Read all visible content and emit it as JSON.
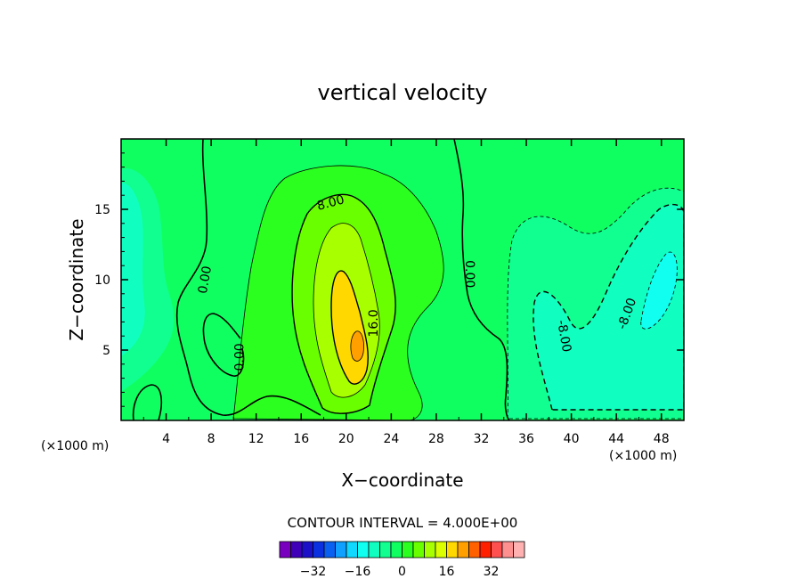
{
  "chart_data": {
    "type": "contour",
    "title": "vertical velocity",
    "xlabel": "X−coordinate",
    "ylabel": "Z−coordinate",
    "x_unit": "(×1000 m)",
    "y_unit": "(×1000 m)",
    "xlim": [
      0,
      50
    ],
    "ylim": [
      0,
      20
    ],
    "x_ticks": [
      "4",
      "8",
      "12",
      "16",
      "20",
      "24",
      "28",
      "32",
      "36",
      "40",
      "44",
      "48"
    ],
    "x_tick_values": [
      4,
      8,
      12,
      16,
      20,
      24,
      28,
      32,
      36,
      40,
      44,
      48
    ],
    "y_ticks": [
      "5",
      "10",
      "15"
    ],
    "y_tick_values": [
      5,
      10,
      15
    ],
    "contour_interval_text": "CONTOUR INTERVAL = 4.000E+00",
    "contour_labels": [
      {
        "text": "0.00",
        "x": 7.4,
        "z": 10.0,
        "angle": -80
      },
      {
        "text": "0.00",
        "x": 10.5,
        "z": 4.5,
        "angle": -90
      },
      {
        "text": "8.00",
        "x": 18.6,
        "z": 15.5,
        "angle": -15
      },
      {
        "text": "16.0",
        "x": 22.4,
        "z": 6.9,
        "angle": -90
      },
      {
        "text": "0.00",
        "x": 31.0,
        "z": 10.4,
        "angle": 90
      },
      {
        "text": "-8.00",
        "x": 39.4,
        "z": 6.0,
        "angle": 80
      },
      {
        "text": "-8.00",
        "x": 44.9,
        "z": 7.6,
        "angle": -70
      }
    ],
    "colorbar": {
      "labels": [
        "−32",
        "−16",
        "0",
        "16",
        "32"
      ],
      "label_values": [
        -32,
        -16,
        0,
        16,
        32
      ],
      "levels": [
        -40,
        -36,
        -32,
        -28,
        -24,
        -20,
        -16,
        -12,
        -8,
        -4,
        0,
        4,
        8,
        12,
        16,
        20,
        24,
        28,
        32,
        36,
        40
      ],
      "colors": [
        "#7a00c0",
        "#3f00b8",
        "#1c10c8",
        "#0a30e0",
        "#0a60f0",
        "#10a0ff",
        "#10d8ff",
        "#10fff0",
        "#10ffc0",
        "#10ff90",
        "#10ff60",
        "#2aff20",
        "#6aff00",
        "#a8ff00",
        "#dcff00",
        "#ffd800",
        "#ffa000",
        "#ff6000",
        "#ff2000",
        "#ff5050",
        "#ff9090",
        "#ffb0b0"
      ]
    },
    "field_colors": {
      "band_neg8": "#10ffc0",
      "band_neg4": "#10ff90",
      "band_0": "#10ff60",
      "band_4": "#2aff20",
      "band_8": "#6aff00",
      "band_12": "#a8ff00",
      "band_16": "#ffd800",
      "band_20": "#ffa000",
      "band_neg12": "#10fff0",
      "band_neg16": "#10d8ff"
    }
  }
}
